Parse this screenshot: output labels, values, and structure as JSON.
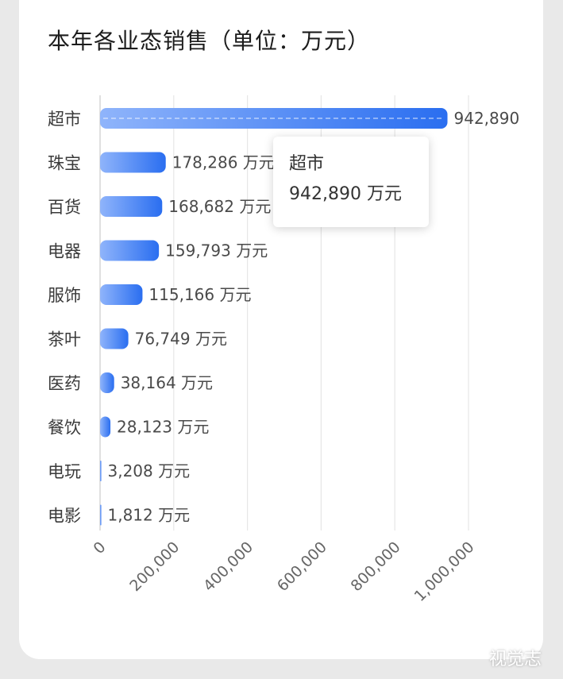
{
  "title": "本年各业态销售（单位：万元）",
  "unit": "万元",
  "colors": {
    "bar_start": "#8fb4fb",
    "bar_end": "#2a6ef0",
    "grid": "#e6e6e6",
    "axis": "#cccccc",
    "card": "#ffffff",
    "background": "#e9e9e9"
  },
  "tooltip": {
    "name": "超市",
    "value": "942,890 万元"
  },
  "watermark": "视觉志",
  "chart_data": {
    "type": "bar",
    "orientation": "horizontal",
    "title": "本年各业态销售（单位：万元）",
    "categories": [
      "超市",
      "珠宝",
      "百货",
      "电器",
      "服饰",
      "茶叶",
      "医药",
      "餐饮",
      "电玩",
      "电影"
    ],
    "values": [
      942890,
      178286,
      168682,
      159793,
      115166,
      76749,
      38164,
      28123,
      3208,
      1812
    ],
    "value_labels": [
      "942,890",
      "178,286 万元",
      "168,682 万元",
      "159,793 万元",
      "115,166 万元",
      "76,749 万元",
      "38,164 万元",
      "28,123 万元",
      "3,208 万元",
      "1,812 万元"
    ],
    "x_ticks": [
      "0",
      "200,000",
      "400,000",
      "600,000",
      "800,000",
      "1,000,000"
    ],
    "xlim": [
      0,
      1000000
    ],
    "grid": true,
    "highlighted_category": "超市"
  }
}
